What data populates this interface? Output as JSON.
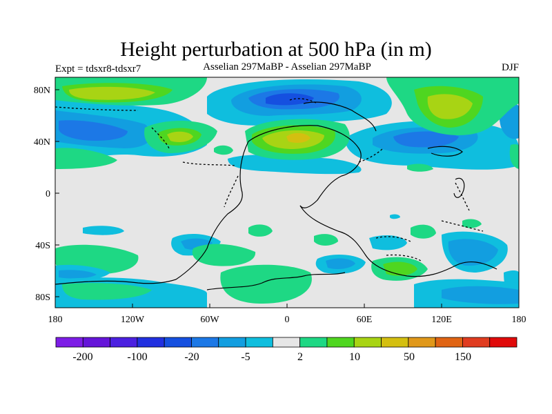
{
  "title": "Height perturbation at 500 hPa (in m)",
  "left_label": "Expt = tdsxr8-tdsxr7",
  "center_label": "Asselian 297MaBP - Asselian 297MaBP",
  "right_label": "DJF",
  "axes": {
    "x_ticks": [
      "180",
      "120W",
      "60W",
      "0",
      "60E",
      "120E",
      "180"
    ],
    "y_ticks": [
      "80N",
      "40N",
      "0",
      "40S",
      "80S"
    ]
  },
  "colorbar": {
    "colors": [
      "#7d1de6",
      "#6515d9",
      "#4b20e0",
      "#2130e0",
      "#1550e0",
      "#1c78e6",
      "#129ee0",
      "#0fbede",
      "#e6e6e6",
      "#1ed884",
      "#4fd620",
      "#a8d414",
      "#d4bf10",
      "#e0981a",
      "#e06414",
      "#e03c20",
      "#e00a0a"
    ],
    "labels": [
      "-200",
      "-100",
      "-20",
      "-5",
      "2",
      "10",
      "50",
      "150"
    ]
  },
  "colors": {
    "background": "#e6e6e6",
    "negative_light": "#0fbede",
    "negative_mid": "#129ee0",
    "negative_strong": "#1c78e6",
    "negative_max": "#1550e0",
    "positive_light": "#1ed884",
    "positive_mid": "#4fd620",
    "positive_strong": "#a8d414",
    "positive_max": "#d4bf10"
  }
}
